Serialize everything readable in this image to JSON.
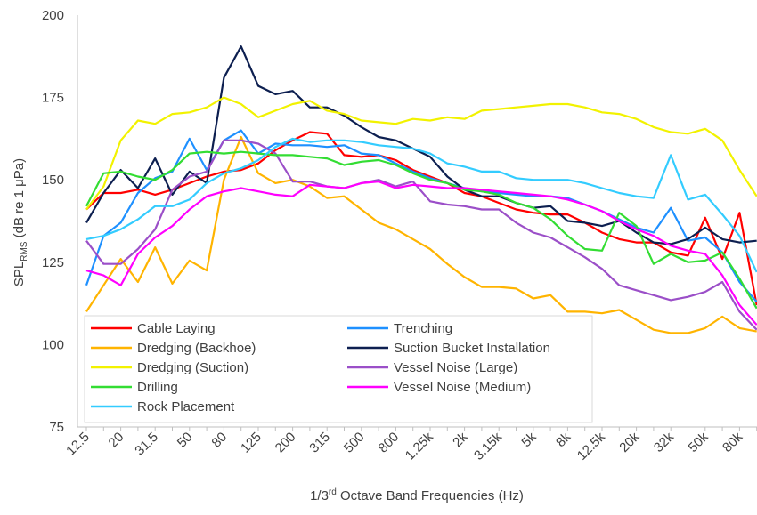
{
  "chart_data": {
    "type": "line",
    "ylabel_parts": [
      "SPL",
      "RMS",
      " (dB re 1 μPa)"
    ],
    "xlabel_parts": [
      "1/3",
      "rd",
      " Octave Band Frequencies (Hz)"
    ],
    "categories": [
      "12.5",
      null,
      "20",
      null,
      "31.5",
      null,
      "50",
      null,
      "80",
      null,
      "125",
      null,
      "200",
      null,
      "315",
      null,
      "500",
      null,
      "800",
      null,
      "1.25k",
      null,
      "2k",
      null,
      "3.15k",
      null,
      "5k",
      null,
      "8k",
      null,
      "12.5k",
      null,
      "20k",
      null,
      "32k",
      null,
      "50k",
      null,
      "80k",
      null
    ],
    "ylim": [
      75,
      200
    ],
    "yticks": [
      75,
      100,
      125,
      150,
      175,
      200
    ],
    "grid": false,
    "series": [
      {
        "name": "Cable Laying",
        "color": "#ff0000",
        "values": [
          141,
          146,
          146,
          147,
          145.5,
          147,
          149,
          151,
          152.5,
          153,
          155,
          159,
          162,
          164.5,
          164,
          157.5,
          157,
          157.5,
          156,
          153,
          151,
          149,
          146,
          145,
          143,
          141,
          140,
          139.5,
          139.5,
          137,
          134,
          132,
          131,
          131,
          128,
          127,
          138.5,
          126,
          140,
          112
        ]
      },
      {
        "name": "Trenching",
        "color": "#1e90ff",
        "values": [
          118,
          133,
          137,
          146,
          150.5,
          152.5,
          162.5,
          153,
          162,
          165,
          158,
          161,
          160.5,
          160.5,
          160,
          160.5,
          158,
          157.5,
          155,
          152.5,
          150.5,
          149,
          147.5,
          146.5,
          146,
          145.5,
          145,
          145,
          144.5,
          142.5,
          140.5,
          138,
          135.5,
          134,
          141.5,
          131.5,
          132.5,
          128,
          119,
          113
        ]
      },
      {
        "name": "Dredging (Backhoe)",
        "color": "#ffb400",
        "values": [
          110,
          118,
          126,
          119,
          129.5,
          118.5,
          125.5,
          122.5,
          150,
          163,
          152,
          149,
          150,
          148,
          144.5,
          145,
          141,
          137,
          135,
          132,
          129,
          124.5,
          120.5,
          117.5,
          117.5,
          117,
          114,
          115,
          110,
          110,
          109.5,
          110.5,
          107.5,
          104.5,
          103.5,
          103.5,
          105,
          108.5,
          105,
          104
        ]
      },
      {
        "name": "Suction Bucket Installation",
        "color": "#0d1f50",
        "values": [
          137,
          146,
          153,
          147.5,
          156.5,
          145.5,
          152.5,
          149,
          181,
          190.5,
          178.5,
          176,
          177,
          172,
          172,
          169.5,
          166,
          163,
          162,
          159.5,
          157,
          151,
          147,
          145,
          145,
          143,
          141.5,
          142,
          137.5,
          137,
          136,
          137.5,
          134,
          131,
          130.5,
          132,
          135.5,
          132,
          131,
          131.5
        ]
      },
      {
        "name": "Dredging (Suction)",
        "color": "#f2f200",
        "values": [
          141,
          148,
          162,
          168,
          167,
          170,
          170.5,
          172,
          175,
          173,
          169,
          171,
          173,
          174,
          171,
          170,
          168,
          167.5,
          167,
          168.5,
          168,
          169,
          168.5,
          171,
          171.5,
          172,
          172.5,
          173,
          173,
          172,
          170.5,
          170,
          168.5,
          166,
          164.5,
          164,
          165.5,
          162,
          153,
          145
        ]
      },
      {
        "name": "Vessel Noise (Large)",
        "color": "#9b4fc8",
        "values": [
          131.5,
          124.5,
          124.5,
          129,
          135,
          147,
          151,
          152.5,
          162,
          162,
          161,
          158,
          149.5,
          149.5,
          148,
          147.5,
          149,
          150,
          148,
          149.5,
          143.5,
          142.5,
          142,
          141,
          141,
          137,
          134,
          132.5,
          129.5,
          126.5,
          123,
          118,
          116.5,
          115,
          113.5,
          114.5,
          116,
          119,
          110,
          104.5
        ]
      },
      {
        "name": "Drilling",
        "color": "#33dd33",
        "values": [
          142,
          152,
          152.5,
          151,
          150,
          153,
          158,
          158.5,
          158,
          158.5,
          158,
          157.5,
          157.5,
          157,
          156.5,
          154.5,
          155.5,
          156,
          154.5,
          152,
          150,
          149,
          147,
          146.5,
          145.5,
          143,
          141.5,
          138,
          133,
          129,
          128.5,
          140,
          136,
          124.5,
          127.5,
          125,
          125.5,
          128,
          120,
          111
        ]
      },
      {
        "name": "Vessel Noise (Medium)",
        "color": "#ff00ff",
        "values": [
          122.5,
          121,
          118,
          127.5,
          132.5,
          136,
          141,
          145,
          146.5,
          147.5,
          146.5,
          145.5,
          145,
          148.5,
          148,
          147.5,
          149,
          149.5,
          147.5,
          148.5,
          148,
          147.5,
          147.5,
          147,
          146.5,
          146,
          145.5,
          145,
          144,
          142.5,
          140.5,
          137.5,
          135,
          133,
          130,
          128.5,
          127.5,
          121,
          112,
          106
        ]
      },
      {
        "name": "Rock Placement",
        "color": "#33ccff",
        "values": [
          132,
          133,
          135,
          138,
          142,
          142,
          144,
          149,
          152,
          153.5,
          156,
          160,
          162.5,
          161.5,
          162,
          162,
          161.5,
          160.5,
          160,
          159.5,
          158,
          155,
          154,
          152.5,
          152.5,
          150.5,
          150,
          150,
          150,
          149,
          147.5,
          146,
          145,
          144.5,
          157.5,
          144,
          145.5,
          139.5,
          133,
          122
        ]
      }
    ]
  }
}
